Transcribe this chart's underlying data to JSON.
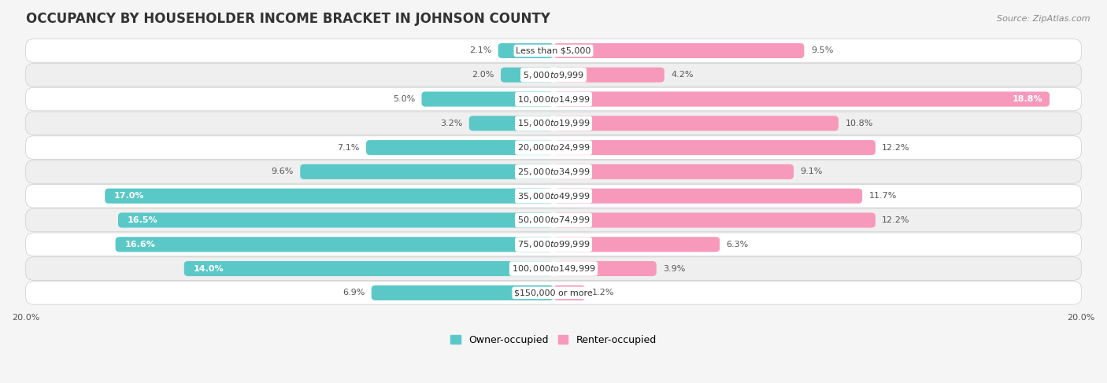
{
  "title": "OCCUPANCY BY HOUSEHOLDER INCOME BRACKET IN JOHNSON COUNTY",
  "source": "Source: ZipAtlas.com",
  "categories": [
    "Less than $5,000",
    "$5,000 to $9,999",
    "$10,000 to $14,999",
    "$15,000 to $19,999",
    "$20,000 to $24,999",
    "$25,000 to $34,999",
    "$35,000 to $49,999",
    "$50,000 to $74,999",
    "$75,000 to $99,999",
    "$100,000 to $149,999",
    "$150,000 or more"
  ],
  "owner_values": [
    2.1,
    2.0,
    5.0,
    3.2,
    7.1,
    9.6,
    17.0,
    16.5,
    16.6,
    14.0,
    6.9
  ],
  "renter_values": [
    9.5,
    4.2,
    18.8,
    10.8,
    12.2,
    9.1,
    11.7,
    12.2,
    6.3,
    3.9,
    1.2
  ],
  "owner_color": "#5BC8C8",
  "renter_color": "#F799BB",
  "background_color": "#f5f5f5",
  "row_color_even": "#ffffff",
  "row_color_odd": "#efefef",
  "axis_limit": 20.0,
  "bar_height": 0.62,
  "title_fontsize": 12,
  "label_fontsize": 8,
  "category_fontsize": 8,
  "legend_fontsize": 9,
  "source_fontsize": 8
}
